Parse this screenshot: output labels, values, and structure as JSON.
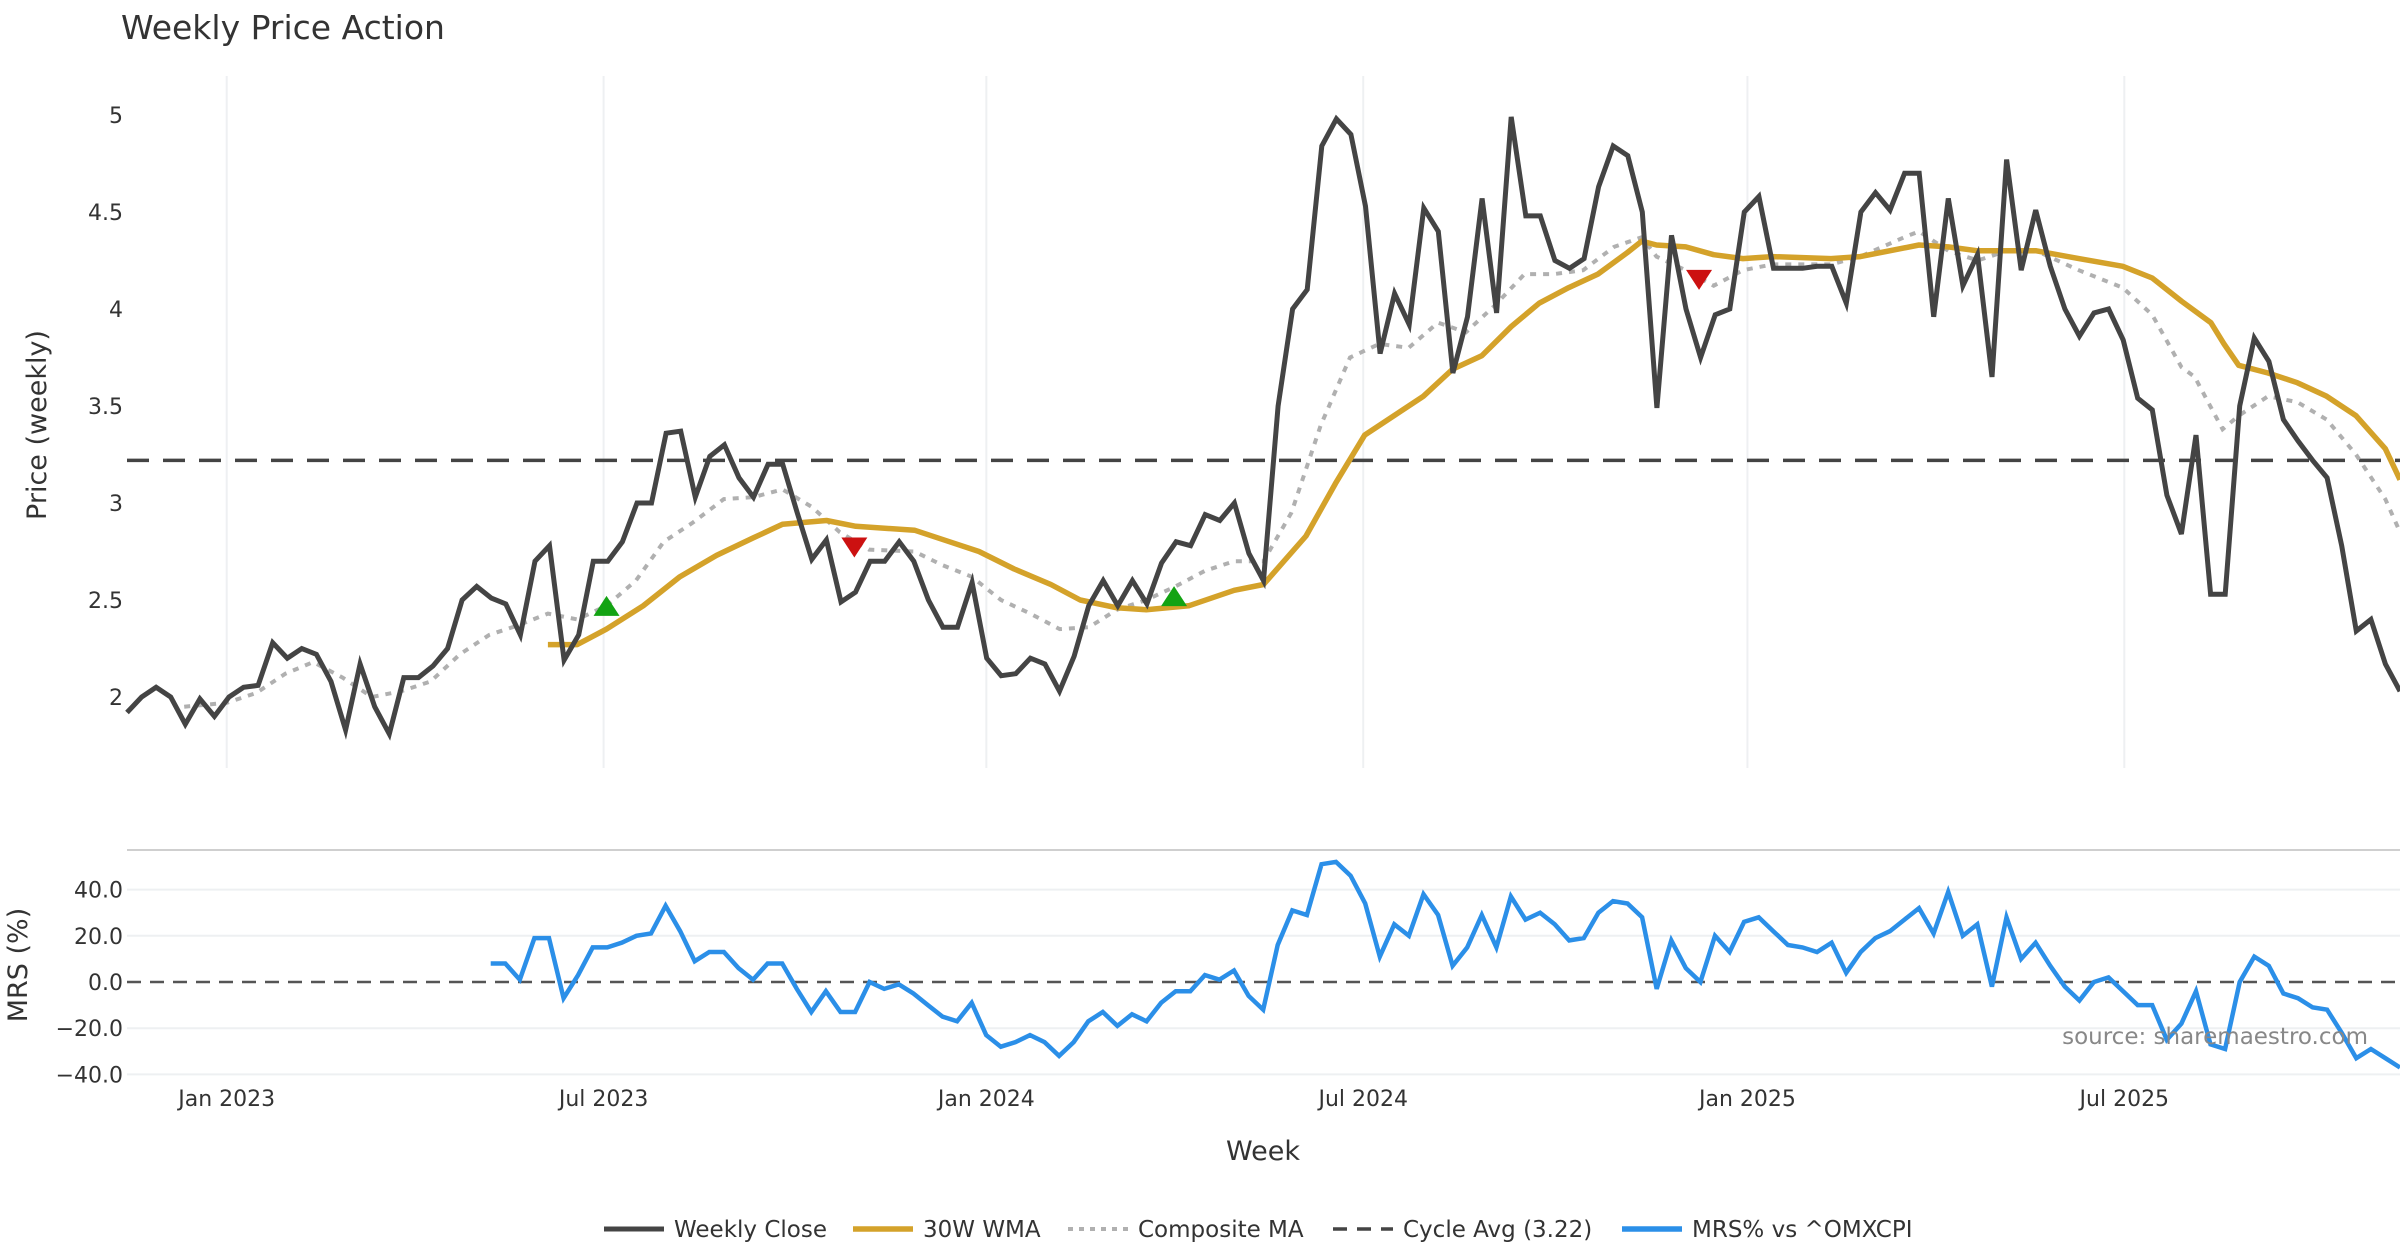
{
  "chart_data": [
    {
      "type": "line",
      "title": "Weekly Price Action",
      "xlabel": "Week",
      "ylabel": "Price (weekly)",
      "ylim": [
        1.65,
        5.2
      ],
      "grid": "vertical",
      "xlim_week_index": [
        0,
        155
      ],
      "x_ticks": [
        {
          "label": "Jan 2023",
          "week_index": 6.8
        },
        {
          "label": "Jul 2023",
          "week_index": 32.5
        },
        {
          "label": "Jan 2024",
          "week_index": 58.6
        },
        {
          "label": "Jul 2024",
          "week_index": 84.3
        },
        {
          "label": "Jan 2025",
          "week_index": 110.5
        },
        {
          "label": "Jul 2025",
          "week_index": 136.2
        }
      ],
      "y_ticks": [
        "2",
        "2.5",
        "3",
        "3.5",
        "4",
        "4.5",
        "5"
      ],
      "y_tick_values": [
        2,
        2.5,
        3,
        3.5,
        4,
        4.5,
        5
      ],
      "weekly_close": [
        1.92,
        2.0,
        2.05,
        2.0,
        1.86,
        1.99,
        1.9,
        2.0,
        2.05,
        2.06,
        2.28,
        2.2,
        2.25,
        2.22,
        2.08,
        1.83,
        2.17,
        1.95,
        1.81,
        2.1,
        2.1,
        2.16,
        2.25,
        2.5,
        2.57,
        2.51,
        2.48,
        2.32,
        2.7,
        2.78,
        2.19,
        2.32,
        2.7,
        2.7,
        2.8,
        3.0,
        3.0,
        3.36,
        3.37,
        3.03,
        3.24,
        3.3,
        3.13,
        3.03,
        3.2,
        3.2,
        2.95,
        2.71,
        2.81,
        2.49,
        2.54,
        2.7,
        2.7,
        2.8,
        2.7,
        2.5,
        2.36,
        2.36,
        2.59,
        2.2,
        2.11,
        2.12,
        2.2,
        2.17,
        2.03,
        2.21,
        2.47,
        2.6,
        2.47,
        2.6,
        2.48,
        2.69,
        2.8,
        2.78,
        2.94,
        2.91,
        3.0,
        2.74,
        2.6,
        3.5,
        4.0,
        4.1,
        4.84,
        4.98,
        4.9,
        4.53,
        3.77,
        4.08,
        3.92,
        4.52,
        4.4,
        3.67,
        3.96,
        4.57,
        3.98,
        4.99,
        4.48,
        4.48,
        4.25,
        4.21,
        4.26,
        4.63,
        4.84,
        4.79,
        4.5,
        3.49,
        4.38,
        4.0,
        3.75,
        3.97,
        4.0,
        4.5,
        4.58,
        4.21,
        4.21,
        4.21,
        4.22,
        4.22,
        4.03,
        4.5,
        4.6,
        4.51,
        4.7,
        4.7,
        3.96,
        4.57,
        4.12,
        4.28,
        3.65,
        4.77,
        4.2,
        4.51,
        4.22,
        4.0,
        3.86,
        3.98,
        4.0,
        3.84,
        3.54,
        3.48,
        3.04,
        2.84,
        3.35,
        2.53,
        2.53,
        3.5,
        3.85,
        3.73,
        3.43,
        3.32,
        3.22,
        3.13,
        2.78,
        2.34,
        2.4,
        2.17,
        2.03
      ],
      "wma_30w": [
        [
          28.7,
          2.27
        ],
        [
          30.7,
          2.27
        ],
        [
          32.7,
          2.35
        ],
        [
          35.2,
          2.47
        ],
        [
          37.7,
          2.62
        ],
        [
          40.2,
          2.73
        ],
        [
          42.7,
          2.82
        ],
        [
          44.7,
          2.89
        ],
        [
          47.7,
          2.91
        ],
        [
          49.7,
          2.88
        ],
        [
          53.7,
          2.86
        ],
        [
          56.1,
          2.8
        ],
        [
          58.1,
          2.75
        ],
        [
          60.5,
          2.66
        ],
        [
          63.0,
          2.58
        ],
        [
          65.0,
          2.5
        ],
        [
          67.5,
          2.46
        ],
        [
          69.5,
          2.45
        ],
        [
          72.4,
          2.47
        ],
        [
          75.5,
          2.55
        ],
        [
          77.5,
          2.58
        ],
        [
          80.4,
          2.83
        ],
        [
          82.4,
          3.1
        ],
        [
          84.4,
          3.35
        ],
        [
          86.4,
          3.45
        ],
        [
          88.4,
          3.55
        ],
        [
          90.4,
          3.69
        ],
        [
          92.4,
          3.76
        ],
        [
          94.4,
          3.91
        ],
        [
          96.3,
          4.03
        ],
        [
          98.3,
          4.11
        ],
        [
          100.3,
          4.18
        ],
        [
          102.3,
          4.29
        ],
        [
          103.3,
          4.35
        ],
        [
          104.3,
          4.33
        ],
        [
          106.3,
          4.32
        ],
        [
          108.2,
          4.28
        ],
        [
          110.2,
          4.26
        ],
        [
          112.2,
          4.27
        ],
        [
          116.2,
          4.26
        ],
        [
          118.2,
          4.27
        ],
        [
          122.2,
          4.33
        ],
        [
          124.2,
          4.32
        ],
        [
          126.2,
          4.3
        ],
        [
          128.2,
          4.3
        ],
        [
          130.2,
          4.3
        ],
        [
          133.1,
          4.26
        ],
        [
          136.1,
          4.22
        ],
        [
          138.1,
          4.16
        ],
        [
          140.1,
          4.04
        ],
        [
          142.1,
          3.93
        ],
        [
          143.0,
          3.82
        ],
        [
          144.0,
          3.71
        ],
        [
          146.0,
          3.67
        ],
        [
          148.0,
          3.62
        ],
        [
          150.0,
          3.55
        ],
        [
          152.0,
          3.45
        ],
        [
          154.0,
          3.28
        ],
        [
          155.0,
          3.12
        ]
      ],
      "composite_ma": [
        [
          3.9,
          1.95
        ],
        [
          6.8,
          1.97
        ],
        [
          8.8,
          2.02
        ],
        [
          10.8,
          2.12
        ],
        [
          12.7,
          2.18
        ],
        [
          14.7,
          2.1
        ],
        [
          16.7,
          2.0
        ],
        [
          18.7,
          2.03
        ],
        [
          20.7,
          2.08
        ],
        [
          22.7,
          2.22
        ],
        [
          24.7,
          2.32
        ],
        [
          26.7,
          2.37
        ],
        [
          28.7,
          2.43
        ],
        [
          30.7,
          2.4
        ],
        [
          32.7,
          2.47
        ],
        [
          34.7,
          2.6
        ],
        [
          36.6,
          2.8
        ],
        [
          38.6,
          2.9
        ],
        [
          40.7,
          3.02
        ],
        [
          42.7,
          3.03
        ],
        [
          44.7,
          3.07
        ],
        [
          46.7,
          2.98
        ],
        [
          48.6,
          2.85
        ],
        [
          50.6,
          2.76
        ],
        [
          53.7,
          2.75
        ],
        [
          55.6,
          2.68
        ],
        [
          57.6,
          2.62
        ],
        [
          59.6,
          2.5
        ],
        [
          61.6,
          2.43
        ],
        [
          63.6,
          2.35
        ],
        [
          65.6,
          2.36
        ],
        [
          67.5,
          2.45
        ],
        [
          69.5,
          2.5
        ],
        [
          71.5,
          2.57
        ],
        [
          73.5,
          2.65
        ],
        [
          75.5,
          2.7
        ],
        [
          77.5,
          2.7
        ],
        [
          79.4,
          2.95
        ],
        [
          81.4,
          3.4
        ],
        [
          83.4,
          3.75
        ],
        [
          85.4,
          3.82
        ],
        [
          87.4,
          3.8
        ],
        [
          89.4,
          3.93
        ],
        [
          91.3,
          3.88
        ],
        [
          93.3,
          4.02
        ],
        [
          95.3,
          4.18
        ],
        [
          97.3,
          4.18
        ],
        [
          99.3,
          4.2
        ],
        [
          101.4,
          4.32
        ],
        [
          103.3,
          4.37
        ],
        [
          104.3,
          4.27
        ],
        [
          106.3,
          4.2
        ],
        [
          108.2,
          4.12
        ],
        [
          110.2,
          4.2
        ],
        [
          112.2,
          4.23
        ],
        [
          116.2,
          4.23
        ],
        [
          118.2,
          4.27
        ],
        [
          121.2,
          4.37
        ],
        [
          122.2,
          4.4
        ],
        [
          124.2,
          4.3
        ],
        [
          126.2,
          4.25
        ],
        [
          128.2,
          4.3
        ],
        [
          130.2,
          4.3
        ],
        [
          133.1,
          4.2
        ],
        [
          136.1,
          4.11
        ],
        [
          138.1,
          3.97
        ],
        [
          140.1,
          3.7
        ],
        [
          141.0,
          3.65
        ],
        [
          142.9,
          3.38
        ],
        [
          144.0,
          3.45
        ],
        [
          146.0,
          3.55
        ],
        [
          148.0,
          3.52
        ],
        [
          150.0,
          3.43
        ],
        [
          152.0,
          3.25
        ],
        [
          154.0,
          3.02
        ],
        [
          155.0,
          2.85
        ]
      ],
      "cycle_avg": 3.22,
      "signals": [
        {
          "type": "buy",
          "week_index": 32.7,
          "value": 2.48
        },
        {
          "type": "sell",
          "week_index": 49.6,
          "value": 2.76
        },
        {
          "type": "buy",
          "week_index": 71.4,
          "value": 2.53
        },
        {
          "type": "sell",
          "week_index": 107.2,
          "value": 4.14
        }
      ],
      "colors": {
        "close": "#444444",
        "wma": "#d4a22a",
        "composite": "#b0b0b0",
        "cycle": "#444444",
        "buy": "#13a313",
        "sell": "#cc1111",
        "grid": "#eef0f2"
      }
    },
    {
      "type": "line",
      "ylabel": "MRS (%)",
      "ylim": [
        -42,
        56
      ],
      "y_ticks": [
        "40.0",
        "20.0",
        "0.0",
        "−20.0",
        "−40.0"
      ],
      "y_tick_values": [
        40,
        20,
        0,
        -20,
        -40
      ],
      "x_start_week_index": 24.8,
      "x_end_week_index": 155,
      "mrs": [
        8,
        8,
        1,
        19,
        19,
        -7,
        3,
        15,
        15,
        17,
        20,
        21,
        33,
        22,
        9,
        13,
        13,
        6,
        1,
        8,
        8,
        -3,
        -13,
        -4,
        -13,
        -13,
        0,
        -3,
        -1,
        -5,
        -10,
        -15,
        -17,
        -9,
        -23,
        -28,
        -26,
        -23,
        -26,
        -32,
        -26,
        -17,
        -13,
        -19,
        -14,
        -17,
        -9,
        -4,
        -4,
        3,
        1,
        5,
        -6,
        -12,
        16,
        31,
        29,
        51,
        52,
        46,
        34,
        11,
        25,
        20,
        38,
        29,
        7,
        15,
        29,
        15,
        37,
        27,
        30,
        25,
        18,
        19,
        30,
        35,
        34,
        28,
        -3,
        18,
        6,
        0,
        20,
        13,
        26,
        28,
        22,
        16,
        15,
        13,
        17,
        4,
        13,
        19,
        22,
        27,
        32,
        21,
        39,
        20,
        25,
        -2,
        28,
        10,
        17,
        7,
        -2,
        -8,
        0,
        2,
        -4,
        -10,
        -10,
        -25,
        -18,
        -4,
        -27,
        -29,
        0,
        11,
        7,
        -5,
        -7,
        -11,
        -12,
        -22,
        -33,
        -29,
        -33,
        -37
      ],
      "colors": {
        "mrs": "#2b8fe8",
        "zero": "#555555"
      }
    }
  ],
  "legend": {
    "placement": "bottom-center",
    "items": [
      "Weekly Close",
      "30W WMA",
      "Composite MA",
      "Cycle Avg (3.22)",
      "MRS% vs ^OMXCPI"
    ]
  },
  "source": "source: sharemaestro.com"
}
